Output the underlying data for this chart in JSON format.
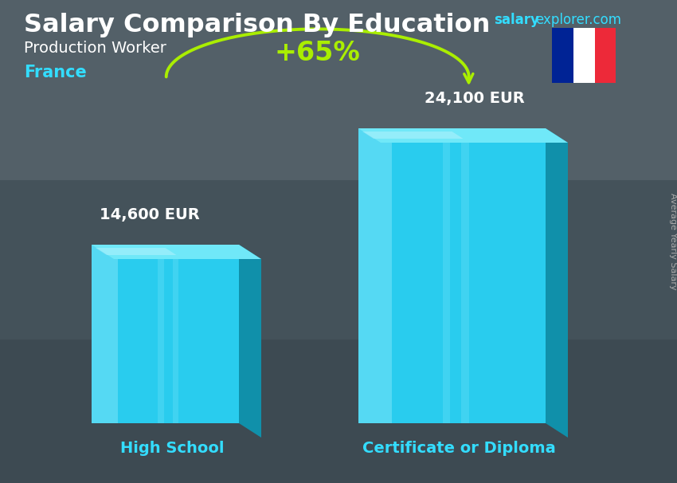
{
  "title_main": "Salary Comparison By Education",
  "title_sub": "Production Worker",
  "country": "France",
  "categories": [
    "High School",
    "Certificate or Diploma"
  ],
  "values": [
    14600,
    24100
  ],
  "value_labels": [
    "14,600 EUR",
    "24,100 EUR"
  ],
  "pct_change": "+65%",
  "bar_front_color": "#29ccee",
  "bar_side_color": "#1090aa",
  "bar_top_color": "#70e8f8",
  "bar_shine_color": "#aaf4ff",
  "arrow_color": "#aaee00",
  "xlabel_color": "#33ddff",
  "title_color": "#ffffff",
  "country_color": "#33ddff",
  "value_color": "#ffffff",
  "bg_color": "#5a6a70",
  "site_text1": "salary",
  "site_text2": "explorer.com",
  "site_color1": "#33ddff",
  "site_color2": "#33ddff",
  "sidebar_text": "Average Yearly Salary",
  "sidebar_color": "#aaaaaa",
  "flag_blue": "#002395",
  "flag_white": "#ffffff",
  "flag_red": "#ED2939"
}
